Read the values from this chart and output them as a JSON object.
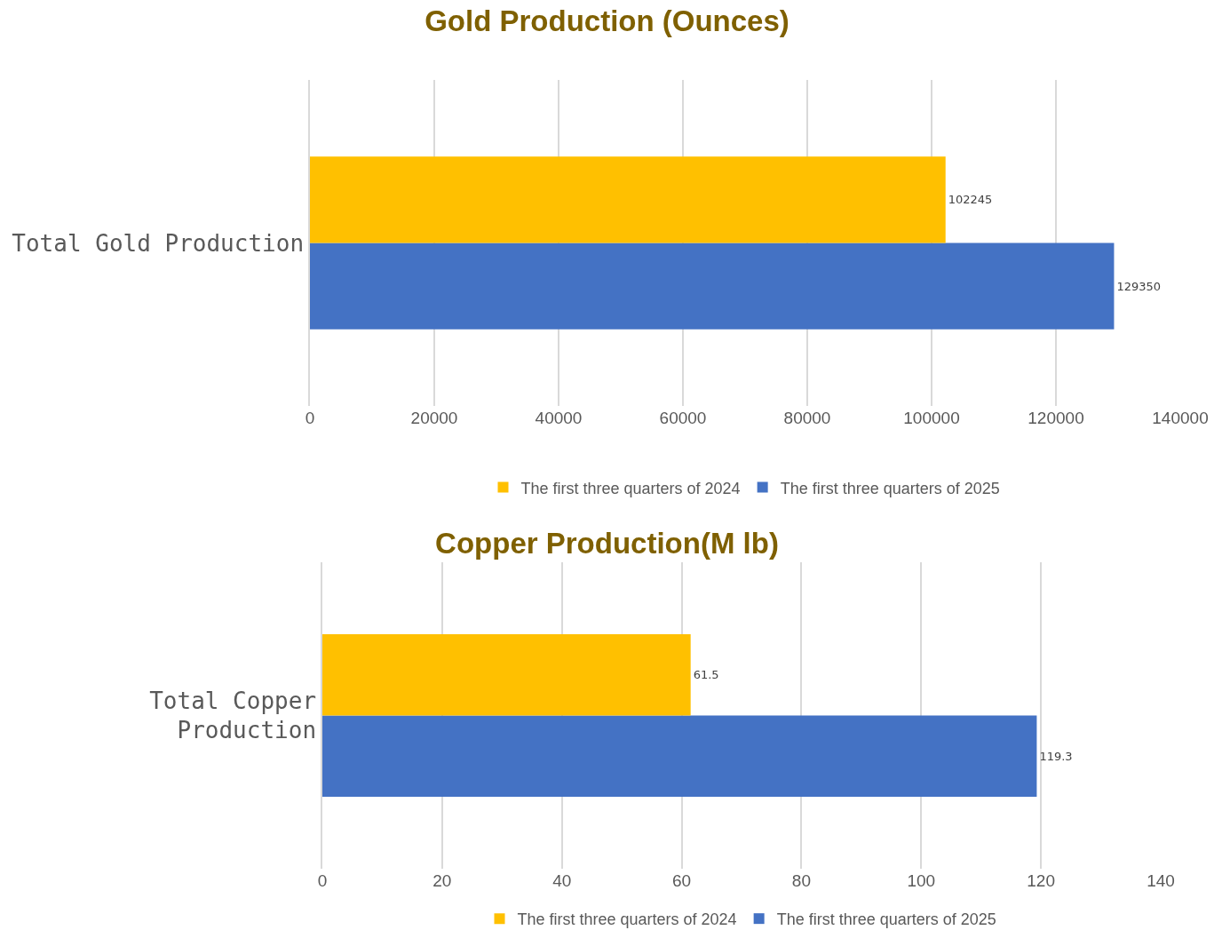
{
  "chart_data": [
    {
      "type": "bar",
      "title": "Gold Production (Ounces)",
      "orientation": "horizontal",
      "categories": [
        "Total Gold Production"
      ],
      "series": [
        {
          "name": "The first three quarters of 2024",
          "color": "#ffc000",
          "values": [
            102245
          ]
        },
        {
          "name": "The first three quarters of 2025",
          "color": "#4472c4",
          "values": [
            129350
          ]
        }
      ],
      "xlim": [
        0,
        140000
      ],
      "xticks": [
        0,
        20000,
        40000,
        60000,
        80000,
        100000,
        120000,
        140000
      ],
      "grid": "x",
      "legend": "bottom",
      "data_labels": true
    },
    {
      "type": "bar",
      "title": "Copper Production(M lb)",
      "orientation": "horizontal",
      "categories": [
        "Total Copper Production"
      ],
      "series": [
        {
          "name": "The first three quarters of 2024",
          "color": "#ffc000",
          "values": [
            61.5
          ]
        },
        {
          "name": "The first three quarters of 2025",
          "color": "#4472c4",
          "values": [
            119.3
          ]
        }
      ],
      "xlim": [
        0,
        140
      ],
      "xticks": [
        0,
        20,
        40,
        60,
        80,
        100,
        120,
        140
      ],
      "grid": "x",
      "legend": "bottom",
      "data_labels": true
    }
  ]
}
